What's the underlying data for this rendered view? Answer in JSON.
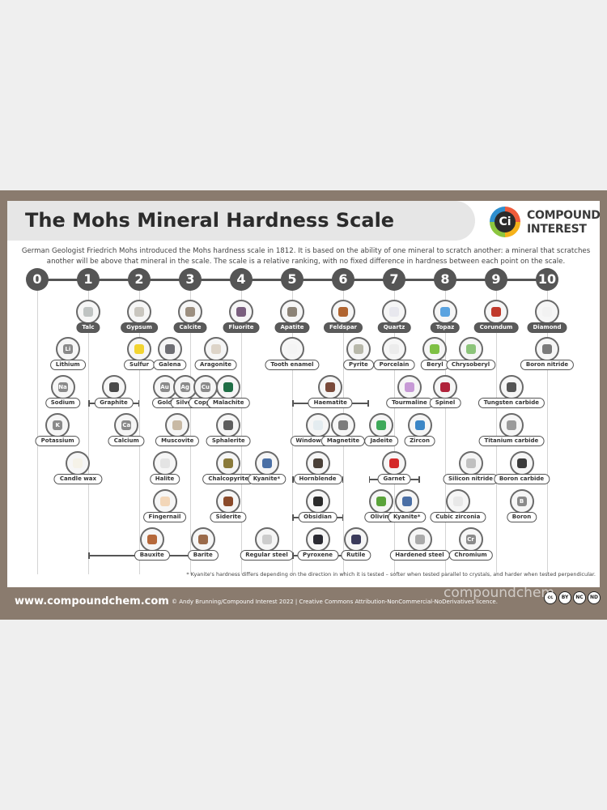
{
  "title": "The Mohs Mineral Hardness Scale",
  "logo": {
    "line1": "COMPOUND",
    "line2": "INTEREST",
    "mark": "Ci"
  },
  "intro": "German Geologist Friedrich Mohs introduced the Mohs hardness scale in 1812. It is based on the ability of one mineral to scratch another: a mineral that scratches another will be above that mineral in the scale. The scale is a relative ranking, with no fixed difference in hardness between each point on the scale.",
  "scale": [
    "0",
    "1",
    "2",
    "3",
    "4",
    "5",
    "6",
    "7",
    "8",
    "9",
    "10"
  ],
  "minerals": [
    {
      "label": "Talc",
      "hardness": 1,
      "row": 0,
      "main": true,
      "color": "#bfc3c2"
    },
    {
      "label": "Gypsum",
      "hardness": 2,
      "row": 0,
      "main": true,
      "color": "#c9c6bf"
    },
    {
      "label": "Calcite",
      "hardness": 3,
      "row": 0,
      "main": true,
      "color": "#9c8f80"
    },
    {
      "label": "Fluorite",
      "hardness": 4,
      "row": 0,
      "main": true,
      "color": "#7a5f7e"
    },
    {
      "label": "Apatite",
      "hardness": 5,
      "row": 0,
      "main": true,
      "color": "#8c8377"
    },
    {
      "label": "Feldspar",
      "hardness": 6,
      "row": 0,
      "main": true,
      "color": "#b0642f"
    },
    {
      "label": "Quartz",
      "hardness": 7,
      "row": 0,
      "main": true,
      "color": "#e8e8ee"
    },
    {
      "label": "Topaz",
      "hardness": 8,
      "row": 0,
      "main": true,
      "color": "#5aa3e0"
    },
    {
      "label": "Corundum",
      "hardness": 9,
      "row": 0,
      "main": true,
      "color": "#c0392b"
    },
    {
      "label": "Diamond",
      "hardness": 10,
      "row": 0,
      "main": true,
      "color": "#f2f2f2"
    },
    {
      "label": "Lithium",
      "hardness": 0.6,
      "row": 1,
      "element": "Li"
    },
    {
      "label": "Sulfur",
      "hardness": 2.0,
      "row": 1,
      "color": "#f2d431"
    },
    {
      "label": "Galena",
      "hardness": 2.6,
      "row": 1,
      "color": "#6e6e73"
    },
    {
      "label": "Aragonite",
      "hardness": 3.5,
      "row": 1,
      "color": "#ddd4c8"
    },
    {
      "label": "Tooth enamel",
      "hardness": 5.0,
      "row": 1,
      "color": "#f4f4f4"
    },
    {
      "label": "Pyrite",
      "hardness": 6.3,
      "row": 1,
      "color": "#b8b8aa"
    },
    {
      "label": "Porcelain",
      "hardness": 7.0,
      "row": 1,
      "color": "#ececec"
    },
    {
      "label": "Beryl",
      "hardness": 7.8,
      "row": 1,
      "color": "#7ec043"
    },
    {
      "label": "Chrysoberyl",
      "hardness": 8.5,
      "row": 1,
      "color": "#8cc47a"
    },
    {
      "label": "Boron nitride",
      "hardness": 10,
      "row": 1,
      "color": "#7a7a7a"
    },
    {
      "label": "Sodium",
      "hardness": 0.5,
      "row": 2,
      "element": "Na"
    },
    {
      "label": "Graphite",
      "hardness": 1.5,
      "row": 2,
      "color": "#4a4a4a",
      "range": [
        1,
        2
      ]
    },
    {
      "label": "Gold",
      "hardness": 2.5,
      "row": 2,
      "element": "Au",
      "narrow": true
    },
    {
      "label": "Silver",
      "hardness": 2.9,
      "row": 2,
      "element": "Ag",
      "narrow": true
    },
    {
      "label": "Copper",
      "hardness": 3.3,
      "row": 2,
      "element": "Cu",
      "narrow": true
    },
    {
      "label": "Malachite",
      "hardness": 3.75,
      "row": 2,
      "color": "#1f6e45"
    },
    {
      "label": "Haematite",
      "hardness": 5.75,
      "row": 2,
      "color": "#7a4a3a",
      "range": [
        5,
        6.5
      ]
    },
    {
      "label": "Tourmaline",
      "hardness": 7.3,
      "row": 2,
      "color": "#c79ad6"
    },
    {
      "label": "Spinel",
      "hardness": 8.0,
      "row": 2,
      "color": "#b0223a"
    },
    {
      "label": "Tungsten carbide",
      "hardness": 9.3,
      "row": 2,
      "color": "#555555"
    },
    {
      "label": "Potassium",
      "hardness": 0.4,
      "row": 3,
      "element": "K"
    },
    {
      "label": "Calcium",
      "hardness": 1.75,
      "row": 3,
      "element": "Ca"
    },
    {
      "label": "Muscovite",
      "hardness": 2.75,
      "row": 3,
      "color": "#c8b9a4"
    },
    {
      "label": "Sphalerite",
      "hardness": 3.75,
      "row": 3,
      "color": "#5e5e5e"
    },
    {
      "label": "Window glass",
      "hardness": 5.5,
      "row": 3,
      "color": "#e4ecf0"
    },
    {
      "label": "Magnetite",
      "hardness": 6.0,
      "row": 3,
      "color": "#7c7c7c"
    },
    {
      "label": "Jadeite",
      "hardness": 6.75,
      "row": 3,
      "color": "#3ea95a"
    },
    {
      "label": "Zircon",
      "hardness": 7.5,
      "row": 3,
      "color": "#3b86c6"
    },
    {
      "label": "Titanium carbide",
      "hardness": 9.3,
      "row": 3,
      "color": "#9a9a9a"
    },
    {
      "label": "Candle wax",
      "hardness": 0.8,
      "row": 4,
      "color": "#f5f2e8"
    },
    {
      "label": "Halite",
      "hardness": 2.5,
      "row": 4,
      "color": "#e4e4e4"
    },
    {
      "label": "Chalcopyrite",
      "hardness": 3.75,
      "row": 4,
      "color": "#8a7a3a"
    },
    {
      "label": "Kyanite*",
      "hardness": 4.5,
      "row": 4,
      "color": "#4a6fa5"
    },
    {
      "label": "Hornblende",
      "hardness": 5.5,
      "row": 4,
      "color": "#4a4038",
      "range": [
        5,
        6
      ]
    },
    {
      "label": "Garnet",
      "hardness": 7.0,
      "row": 4,
      "color": "#d42a2a",
      "range": [
        6.5,
        7.5
      ]
    },
    {
      "label": "Silicon nitride",
      "hardness": 8.5,
      "row": 4,
      "color": "#c0c0c0"
    },
    {
      "label": "Boron carbide",
      "hardness": 9.5,
      "row": 4,
      "color": "#3a3a3a"
    },
    {
      "label": "Fingernail",
      "hardness": 2.5,
      "row": 5,
      "color": "#f2d6b8"
    },
    {
      "label": "Siderite",
      "hardness": 3.75,
      "row": 5,
      "color": "#8a4a2a"
    },
    {
      "label": "Obsidian",
      "hardness": 5.5,
      "row": 5,
      "color": "#2a2a2a",
      "range": [
        5,
        6
      ]
    },
    {
      "label": "Olivine",
      "hardness": 6.75,
      "row": 5,
      "color": "#5aa33a"
    },
    {
      "label": "Kyanite*",
      "hardness": 7.25,
      "row": 5,
      "color": "#4a6fa5"
    },
    {
      "label": "Cubic zirconia",
      "hardness": 8.25,
      "row": 5,
      "color": "#e8e8e8"
    },
    {
      "label": "Boron",
      "hardness": 9.5,
      "row": 5,
      "element": "B"
    },
    {
      "label": "Bauxite",
      "hardness": 2.25,
      "row": 6,
      "color": "#b5683a",
      "range": [
        1,
        3
      ]
    },
    {
      "label": "Barite",
      "hardness": 3.25,
      "row": 6,
      "color": "#9a6a4a"
    },
    {
      "label": "Regular steel",
      "hardness": 4.5,
      "row": 6,
      "color": "#cccccc"
    },
    {
      "label": "Pyroxene",
      "hardness": 5.5,
      "row": 6,
      "color": "#2a2a32",
      "range": [
        5,
        6.5
      ]
    },
    {
      "label": "Rutile",
      "hardness": 6.25,
      "row": 6,
      "color": "#3a3a5a"
    },
    {
      "label": "Hardened steel",
      "hardness": 7.5,
      "row": 6,
      "color": "#aaaaaa"
    },
    {
      "label": "Chromium",
      "hardness": 8.5,
      "row": 6,
      "element": "Cr"
    }
  ],
  "footnote": "* Kyanite's hardness differs depending on the direction in which it is tested – softer when tested parallel to crystals, and harder when tested perpendicular.",
  "footer": {
    "url": "www.compoundchem.com",
    "credit": "© Andy Brunning/Compound Interest 2022  |  Creative Commons Attribution-NonCommercial-NoDerivatives licence.",
    "cc": [
      "cc",
      "BY",
      "NC",
      "ND"
    ]
  },
  "watermark": "compoundchem"
}
